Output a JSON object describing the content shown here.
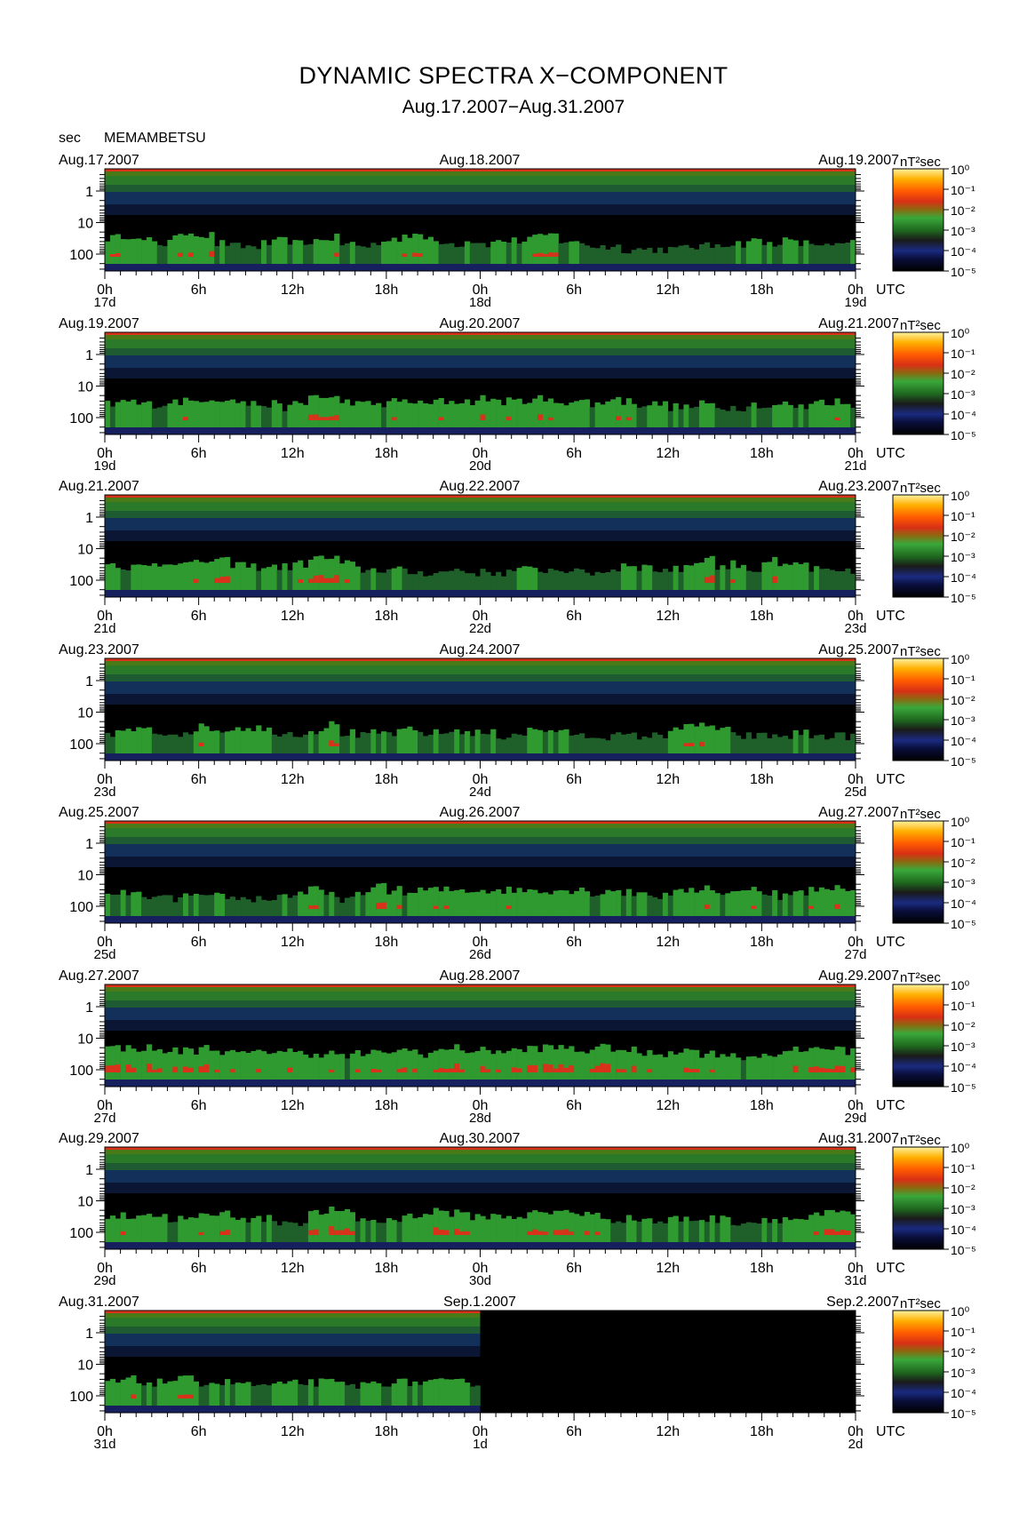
{
  "header": {
    "title": "DYNAMIC SPECTRA X−COMPONENT",
    "subtitle": "Aug.17.2007−Aug.31.2007",
    "unit_label": "sec",
    "station": "MEMAMBETSU"
  },
  "colors": {
    "background": "#000000",
    "scale": [
      "#000000",
      "#0a0f3c",
      "#1a2a80",
      "#1f6a1f",
      "#3aa83a",
      "#d83016",
      "#ff4a00",
      "#ffa000",
      "#ffe070",
      "#ffffff"
    ]
  },
  "chart_data": {
    "type": "heatmap",
    "ylabel": "sec",
    "y_ticks": [
      "1",
      "10",
      "100"
    ],
    "y_scale": "log",
    "x_ticks": [
      "0h",
      "6h",
      "12h",
      "18h",
      "0h",
      "6h",
      "12h",
      "18h",
      "0h"
    ],
    "x_suffix": "UTC",
    "colorbar": {
      "unit": "nT²sec",
      "labels": [
        "10⁰",
        "10⁻¹",
        "10⁻²",
        "10⁻³",
        "10⁻⁴",
        "10⁻⁵"
      ]
    },
    "panels": [
      {
        "date_left": "Aug.17.2007",
        "date_mid": "Aug.18.2007",
        "date_right": "Aug.19.2007",
        "day_left": "17d",
        "day_mid": "18d",
        "day_right": "19d",
        "activity": [
          0.6,
          0.7,
          0.5,
          0.4,
          0.6,
          0.8,
          0.7,
          0.4,
          0.3,
          0.3,
          0.4,
          0.5,
          0.4,
          0.5,
          0.6,
          0.4,
          0.3,
          0.4,
          0.6,
          0.7,
          0.6,
          0.5,
          0.4,
          0.5,
          0.4,
          0.5,
          0.5,
          0.6,
          0.7,
          0.5,
          0.4,
          0.3,
          0.3,
          0.2,
          0.2,
          0.2,
          0.2,
          0.3,
          0.3,
          0.4,
          0.4,
          0.5,
          0.4,
          0.5,
          0.4,
          0.4,
          0.3,
          0.4
        ]
      },
      {
        "date_left": "Aug.19.2007",
        "date_mid": "Aug.20.2007",
        "date_right": "Aug.21.2007",
        "day_left": "19d",
        "day_mid": "20d",
        "day_right": "21d",
        "activity": [
          0.5,
          0.6,
          0.5,
          0.5,
          0.6,
          0.6,
          0.7,
          0.7,
          0.6,
          0.5,
          0.5,
          0.4,
          0.5,
          0.8,
          0.7,
          0.6,
          0.5,
          0.5,
          0.6,
          0.6,
          0.5,
          0.6,
          0.6,
          0.6,
          0.7,
          0.6,
          0.6,
          0.7,
          0.6,
          0.6,
          0.6,
          0.5,
          0.7,
          0.6,
          0.5,
          0.5,
          0.4,
          0.4,
          0.5,
          0.4,
          0.4,
          0.5,
          0.4,
          0.5,
          0.4,
          0.6,
          0.6,
          0.5
        ]
      },
      {
        "date_left": "Aug.21.2007",
        "date_mid": "Aug.22.2007",
        "date_right": "Aug.23.2007",
        "day_left": "21d",
        "day_mid": "22d",
        "day_right": "23d",
        "activity": [
          0.6,
          0.5,
          0.5,
          0.6,
          0.7,
          0.6,
          0.7,
          0.7,
          0.6,
          0.5,
          0.5,
          0.5,
          0.6,
          0.8,
          0.8,
          0.6,
          0.4,
          0.4,
          0.4,
          0.3,
          0.3,
          0.3,
          0.4,
          0.3,
          0.3,
          0.3,
          0.4,
          0.4,
          0.4,
          0.4,
          0.3,
          0.3,
          0.4,
          0.6,
          0.5,
          0.4,
          0.4,
          0.6,
          0.8,
          0.5,
          0.6,
          0.4,
          0.7,
          0.5,
          0.6,
          0.4,
          0.3,
          0.3
        ]
      },
      {
        "date_left": "Aug.23.2007",
        "date_mid": "Aug.24.2007",
        "date_right": "Aug.25.2007",
        "day_left": "23d",
        "day_mid": "24d",
        "day_right": "25d",
        "activity": [
          0.4,
          0.5,
          0.5,
          0.4,
          0.4,
          0.5,
          0.6,
          0.5,
          0.6,
          0.6,
          0.5,
          0.4,
          0.4,
          0.5,
          0.7,
          0.4,
          0.3,
          0.4,
          0.4,
          0.5,
          0.4,
          0.4,
          0.5,
          0.4,
          0.4,
          0.3,
          0.4,
          0.5,
          0.5,
          0.4,
          0.3,
          0.3,
          0.3,
          0.3,
          0.3,
          0.3,
          0.6,
          0.6,
          0.7,
          0.5,
          0.3,
          0.3,
          0.3,
          0.3,
          0.4,
          0.3,
          0.3,
          0.3
        ]
      },
      {
        "date_left": "Aug.25.2007",
        "date_mid": "Aug.26.2007",
        "date_right": "Aug.27.2007",
        "day_left": "25d",
        "day_mid": "26d",
        "day_right": "27d",
        "activity": [
          0.4,
          0.5,
          0.4,
          0.3,
          0.3,
          0.4,
          0.3,
          0.4,
          0.3,
          0.3,
          0.3,
          0.4,
          0.5,
          0.6,
          0.4,
          0.3,
          0.4,
          0.8,
          0.6,
          0.5,
          0.6,
          0.6,
          0.6,
          0.6,
          0.6,
          0.6,
          0.6,
          0.6,
          0.6,
          0.6,
          0.6,
          0.5,
          0.6,
          0.5,
          0.5,
          0.4,
          0.5,
          0.6,
          0.7,
          0.5,
          0.5,
          0.7,
          0.5,
          0.4,
          0.5,
          0.6,
          0.7,
          0.7
        ]
      },
      {
        "date_left": "Aug.27.2007",
        "date_mid": "Aug.28.2007",
        "date_right": "Aug.29.2007",
        "day_left": "27d",
        "day_mid": "28d",
        "day_right": "29d",
        "activity": [
          0.8,
          0.8,
          0.8,
          0.7,
          0.7,
          0.7,
          0.8,
          0.7,
          0.6,
          0.6,
          0.7,
          0.7,
          0.6,
          0.6,
          0.6,
          0.5,
          0.6,
          0.6,
          0.7,
          0.7,
          0.6,
          0.7,
          0.8,
          0.7,
          0.7,
          0.7,
          0.7,
          0.8,
          0.8,
          0.8,
          0.7,
          0.8,
          0.8,
          0.7,
          0.6,
          0.6,
          0.7,
          0.7,
          0.6,
          0.6,
          0.5,
          0.5,
          0.6,
          0.6,
          0.7,
          0.8,
          0.8,
          0.7
        ]
      },
      {
        "date_left": "Aug.29.2007",
        "date_mid": "Aug.30.2007",
        "date_right": "Aug.31.2007",
        "day_left": "29d",
        "day_mid": "30d",
        "day_right": "31d",
        "activity": [
          0.6,
          0.6,
          0.7,
          0.6,
          0.5,
          0.5,
          0.6,
          0.7,
          0.6,
          0.5,
          0.5,
          0.4,
          0.4,
          0.7,
          0.8,
          0.7,
          0.5,
          0.4,
          0.5,
          0.6,
          0.7,
          0.8,
          0.7,
          0.6,
          0.6,
          0.6,
          0.6,
          0.7,
          0.7,
          0.8,
          0.7,
          0.6,
          0.5,
          0.5,
          0.5,
          0.4,
          0.5,
          0.5,
          0.5,
          0.5,
          0.4,
          0.4,
          0.5,
          0.5,
          0.5,
          0.6,
          0.7,
          0.7
        ]
      },
      {
        "date_left": "Aug.31.2007",
        "date_mid": "Sep.1.2007",
        "date_right": "Sep.2.2007",
        "day_left": "31d",
        "day_mid": "1d",
        "day_right": "2d",
        "activity": [
          0.5,
          0.6,
          0.5,
          0.5,
          0.6,
          0.6,
          0.5,
          0.5,
          0.5,
          0.4,
          0.4,
          0.4,
          0.5,
          0.5,
          0.5,
          0.4,
          0.4,
          0.5,
          0.5,
          0.5,
          0.5,
          0.5,
          0.5,
          0.5
        ],
        "data_ends": 0.5
      }
    ]
  }
}
